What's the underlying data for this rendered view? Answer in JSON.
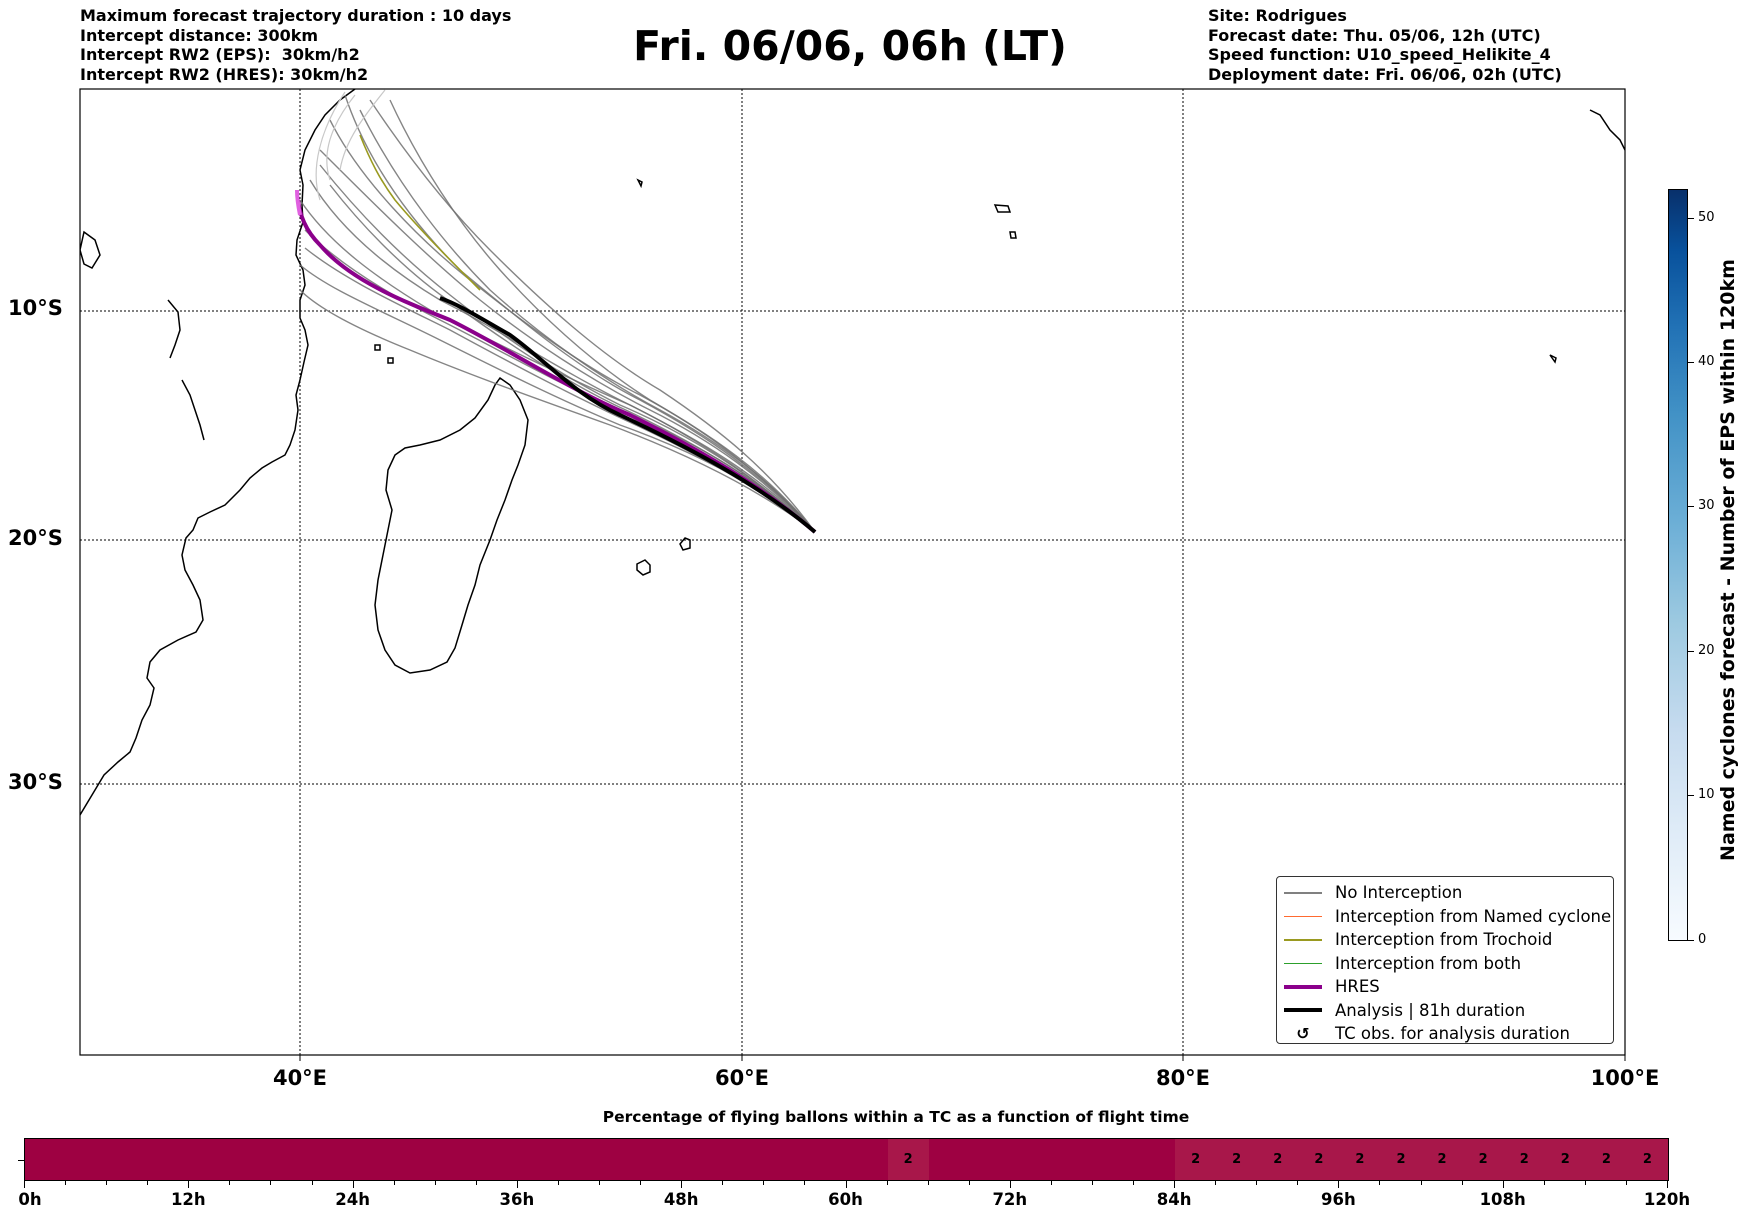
{
  "header": {
    "left_lines": [
      "Maximum forecast trajectory duration : 10 days",
      "Intercept distance: 300km",
      "Intercept RW2 (EPS):  30km/h2",
      "Intercept RW2 (HRES): 30km/h2"
    ],
    "title": "Fri. 06/06, 06h (LT)",
    "right_lines": [
      "Site: Rodrigues",
      "Forecast date: Thu. 05/06, 12h (UTC)",
      "Speed function: U10_speed_Helikite_4",
      "Deployment date: Fri. 06/06, 02h (UTC)"
    ]
  },
  "map": {
    "lat_labels": [
      "10°S",
      "20°S",
      "30°S"
    ],
    "lon_labels": [
      "40°E",
      "60°E",
      "80°E",
      "100°E"
    ]
  },
  "legend": {
    "items": [
      {
        "label": "No Interception",
        "color": "#808080",
        "style": "thin"
      },
      {
        "label": "Interception from Named cyclone",
        "color": "#ff6a30",
        "style": "thin"
      },
      {
        "label": "Interception from Trochoid",
        "color": "#9a9a20",
        "style": "thin"
      },
      {
        "label": "Interception from both",
        "color": "#2ca02c",
        "style": "thin"
      },
      {
        "label": "HRES",
        "color": "#8b008b",
        "style": "thick"
      },
      {
        "label": "Analysis | 81h duration",
        "color": "#000000",
        "style": "thick"
      },
      {
        "label": "TC obs. for analysis duration",
        "color": "#000000",
        "style": "symbol",
        "symbol": "↺"
      }
    ]
  },
  "colorbar": {
    "title": "Named cyclones forecast - Number of EPS within 120km",
    "ticks": [
      "0",
      "10",
      "20",
      "30",
      "40",
      "50"
    ],
    "min": 0,
    "max": 52
  },
  "bar": {
    "title": "Percentage of flying ballons within a TC as a function of flight time",
    "hours": [
      "0h",
      "12h",
      "24h",
      "36h",
      "48h",
      "60h",
      "72h",
      "84h",
      "96h",
      "108h",
      "120h"
    ],
    "cell_labels": [
      "2",
      "2",
      "2",
      "2",
      "2",
      "2",
      "2",
      "2",
      "2",
      "2",
      "2",
      "2",
      "2"
    ],
    "cell_label_hours": [
      64.5,
      85.5,
      88.5,
      91.5,
      94.5,
      97.5,
      100.5,
      103.5,
      106.5,
      109.5,
      112.5,
      115.5,
      118.5
    ],
    "base_color": "#9e0142",
    "highlight_color": "#a8174a"
  }
}
